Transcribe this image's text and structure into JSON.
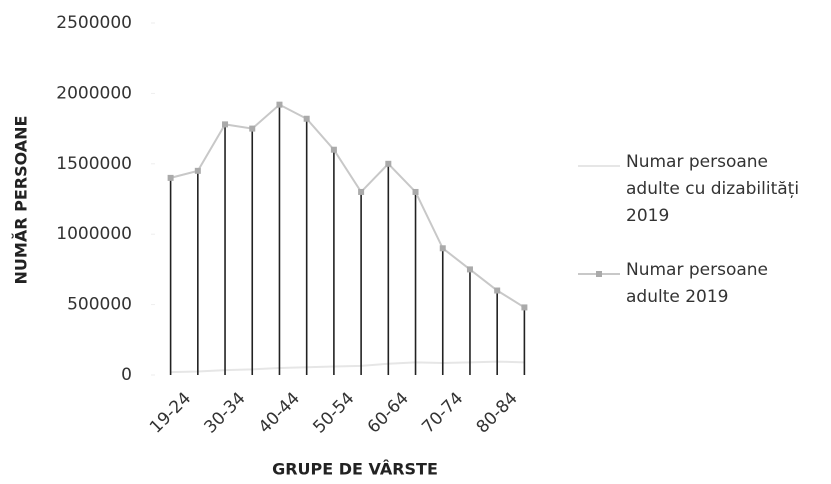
{
  "chart_data": {
    "type": "line",
    "x_label": "GRUPE DE VÂRSTE",
    "y_label": "NUMĂR PERSOANE",
    "categories": [
      "19-24",
      null,
      "30-34",
      null,
      "40-44",
      null,
      "50-54",
      null,
      "60-64",
      null,
      "70-74",
      null,
      "80-84",
      null
    ],
    "series": [
      {
        "name": "Numar persoane adulte cu dizabilități 2019",
        "color": "#e6e6e6",
        "values": [
          20000,
          25000,
          35000,
          40000,
          50000,
          55000,
          60000,
          65000,
          80000,
          90000,
          85000,
          90000,
          95000,
          90000
        ]
      },
      {
        "name": "Numar persoane adulte 2019",
        "color": "#c8c8c8",
        "values": [
          1400000,
          1450000,
          1780000,
          1750000,
          1920000,
          1820000,
          1600000,
          1300000,
          1500000,
          1300000,
          900000,
          750000,
          600000,
          480000
        ]
      }
    ],
    "ylim": [
      0,
      2500000
    ],
    "yticks": [
      0,
      500000,
      1000000,
      1500000,
      2000000,
      2500000
    ],
    "drop_lines": true
  }
}
